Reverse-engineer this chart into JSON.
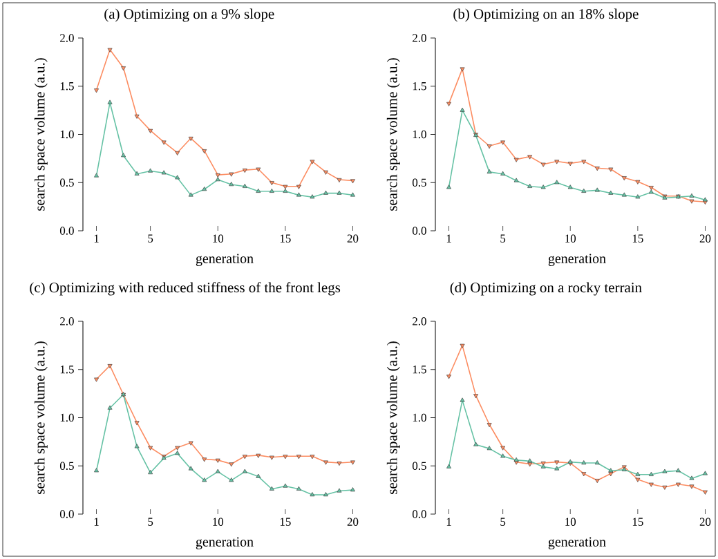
{
  "chart_data": [
    {
      "type": "line",
      "title": "(a) Optimizing on a 9% slope",
      "xlabel": "generation",
      "ylabel": "search space volume (a.u.)",
      "marker": "triangle",
      "x": [
        1,
        2,
        3,
        4,
        5,
        6,
        7,
        8,
        9,
        10,
        11,
        12,
        13,
        14,
        15,
        16,
        17,
        18,
        19,
        20
      ],
      "series": [
        {
          "color": "#fc8d62",
          "values": [
            1.46,
            1.88,
            1.69,
            1.19,
            1.04,
            0.92,
            0.81,
            0.96,
            0.83,
            0.58,
            0.59,
            0.63,
            0.64,
            0.5,
            0.46,
            0.46,
            0.72,
            0.61,
            0.53,
            0.52
          ]
        },
        {
          "color": "#66c2a5",
          "values": [
            0.57,
            1.33,
            0.78,
            0.59,
            0.62,
            0.6,
            0.55,
            0.37,
            0.43,
            0.53,
            0.48,
            0.46,
            0.41,
            0.41,
            0.41,
            0.37,
            0.35,
            0.39,
            0.39,
            0.37
          ]
        }
      ],
      "xlim": [
        1,
        20
      ],
      "ylim": [
        0,
        2
      ],
      "xticks": [
        1,
        5,
        10,
        15,
        20
      ],
      "yticks": [
        {
          "value": 0,
          "label": "0.0"
        },
        {
          "value": 0.5,
          "label": "0.5"
        },
        {
          "value": 1,
          "label": "1.0"
        },
        {
          "value": 1.5,
          "label": "1.5"
        },
        {
          "value": 2,
          "label": "2.0"
        }
      ]
    },
    {
      "type": "line",
      "title": "(b) Optimizing on an 18% slope",
      "xlabel": "generation",
      "ylabel": "search space volume (a.u.)",
      "marker": "triangle",
      "x": [
        1,
        2,
        3,
        4,
        5,
        6,
        7,
        8,
        9,
        10,
        11,
        12,
        13,
        14,
        15,
        16,
        17,
        18,
        19,
        20
      ],
      "series": [
        {
          "color": "#fc8d62",
          "values": [
            1.32,
            1.68,
            1.0,
            0.88,
            0.92,
            0.74,
            0.77,
            0.69,
            0.72,
            0.7,
            0.72,
            0.65,
            0.64,
            0.55,
            0.51,
            0.45,
            0.36,
            0.36,
            0.31,
            0.3
          ]
        },
        {
          "color": "#66c2a5",
          "values": [
            0.45,
            1.25,
            0.99,
            0.61,
            0.59,
            0.52,
            0.46,
            0.45,
            0.5,
            0.45,
            0.41,
            0.42,
            0.39,
            0.37,
            0.35,
            0.4,
            0.34,
            0.35,
            0.36,
            0.32
          ]
        }
      ],
      "xlim": [
        1,
        20
      ],
      "ylim": [
        0,
        2
      ],
      "xticks": [
        1,
        5,
        10,
        15,
        20
      ],
      "yticks": [
        {
          "value": 0,
          "label": "0.0"
        },
        {
          "value": 0.5,
          "label": "0.5"
        },
        {
          "value": 1,
          "label": "1.0"
        },
        {
          "value": 1.5,
          "label": "1.5"
        },
        {
          "value": 2,
          "label": "2.0"
        }
      ]
    },
    {
      "type": "line",
      "title": "(c) Optimizing with reduced stiffness of the front legs",
      "xlabel": "generation",
      "ylabel": "search space volume (a.u.)",
      "marker": "triangle",
      "x": [
        1,
        2,
        3,
        4,
        5,
        6,
        7,
        8,
        9,
        10,
        11,
        12,
        13,
        14,
        15,
        16,
        17,
        18,
        19,
        20
      ],
      "series": [
        {
          "color": "#fc8d62",
          "values": [
            1.4,
            1.54,
            1.24,
            0.95,
            0.69,
            0.6,
            0.69,
            0.74,
            0.57,
            0.56,
            0.52,
            0.6,
            0.61,
            0.59,
            0.6,
            0.6,
            0.6,
            0.54,
            0.53,
            0.54
          ]
        },
        {
          "color": "#66c2a5",
          "values": [
            0.45,
            1.1,
            1.24,
            0.7,
            0.43,
            0.58,
            0.63,
            0.47,
            0.35,
            0.44,
            0.35,
            0.44,
            0.39,
            0.26,
            0.29,
            0.26,
            0.2,
            0.2,
            0.24,
            0.25
          ]
        }
      ],
      "xlim": [
        1,
        20
      ],
      "ylim": [
        0,
        2
      ],
      "xticks": [
        1,
        5,
        10,
        15,
        20
      ],
      "yticks": [
        {
          "value": 0,
          "label": "0.0"
        },
        {
          "value": 0.5,
          "label": "0.5"
        },
        {
          "value": 1,
          "label": "1.0"
        },
        {
          "value": 1.5,
          "label": "1.5"
        },
        {
          "value": 2,
          "label": "2.0"
        }
      ]
    },
    {
      "type": "line",
      "title": "(d) Optimizing on a rocky terrain",
      "xlabel": "generation",
      "ylabel": "search space volume (a.u.)",
      "marker": "triangle",
      "x": [
        1,
        2,
        3,
        4,
        5,
        6,
        7,
        8,
        9,
        10,
        11,
        12,
        13,
        14,
        15,
        16,
        17,
        18,
        19,
        20
      ],
      "series": [
        {
          "color": "#fc8d62",
          "values": [
            1.43,
            1.75,
            1.23,
            0.93,
            0.69,
            0.54,
            0.52,
            0.53,
            0.54,
            0.53,
            0.42,
            0.35,
            0.42,
            0.49,
            0.36,
            0.31,
            0.28,
            0.31,
            0.29,
            0.23
          ]
        },
        {
          "color": "#66c2a5",
          "values": [
            0.49,
            1.18,
            0.72,
            0.68,
            0.6,
            0.56,
            0.55,
            0.49,
            0.47,
            0.54,
            0.53,
            0.53,
            0.45,
            0.46,
            0.41,
            0.41,
            0.44,
            0.45,
            0.37,
            0.42
          ]
        }
      ],
      "xlim": [
        1,
        20
      ],
      "ylim": [
        0,
        2
      ],
      "xticks": [
        1,
        5,
        10,
        15,
        20
      ],
      "yticks": [
        {
          "value": 0,
          "label": "0.0"
        },
        {
          "value": 0.5,
          "label": "0.5"
        },
        {
          "value": 1,
          "label": "1.0"
        },
        {
          "value": 1.5,
          "label": "1.5"
        },
        {
          "value": 2,
          "label": "2.0"
        }
      ]
    }
  ]
}
